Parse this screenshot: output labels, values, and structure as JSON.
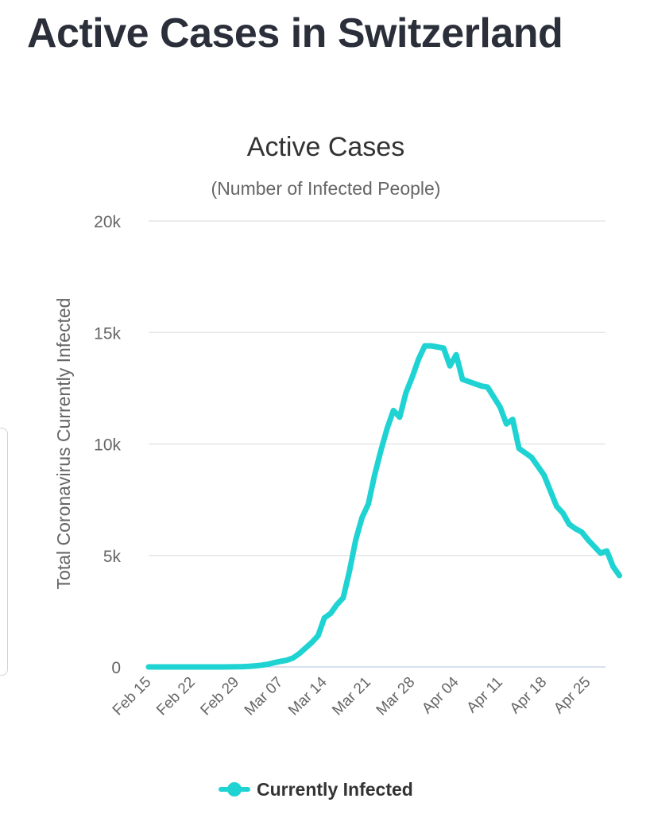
{
  "page": {
    "title": "Active Cases in Switzerland"
  },
  "chart_data": {
    "type": "line",
    "title": "Active Cases",
    "subtitle": "(Number of Infected People)",
    "ylabel": "Total Coronavirus Currently Infected",
    "xlabel": "",
    "ylim": [
      0,
      20000
    ],
    "y_ticks": [
      0,
      5000,
      10000,
      15000,
      20000
    ],
    "y_tick_labels": [
      "0",
      "5k",
      "10k",
      "15k",
      "20k"
    ],
    "x_tick_labels": [
      "Feb 15",
      "Feb 22",
      "Feb 29",
      "Mar 07",
      "Mar 14",
      "Mar 21",
      "Mar 28",
      "Apr 04",
      "Apr 11",
      "Apr 18",
      "Apr 25"
    ],
    "grid": true,
    "legend_position": "bottom-center",
    "series": [
      {
        "name": "Currently Infected",
        "color": "#1fd3d3",
        "start_date": "Feb 15",
        "values": [
          0,
          0,
          0,
          0,
          0,
          0,
          0,
          0,
          0,
          0,
          0,
          0,
          1,
          5,
          10,
          15,
          30,
          50,
          80,
          120,
          190,
          250,
          300,
          400,
          600,
          850,
          1100,
          1400,
          2200,
          2400,
          2800,
          3100,
          4300,
          5700,
          6700,
          7300,
          8600,
          9700,
          10700,
          11500,
          11200,
          12300,
          13000,
          13800,
          14400,
          14400,
          14350,
          14300,
          13500,
          14000,
          12900,
          12800,
          12700,
          12600,
          12550,
          12100,
          11650,
          10900,
          11100,
          9800,
          9600,
          9400,
          9000,
          8600,
          7900,
          7200,
          6900,
          6400,
          6200,
          6050,
          5700,
          5400,
          5100,
          5200,
          4500,
          4100
        ]
      }
    ]
  }
}
